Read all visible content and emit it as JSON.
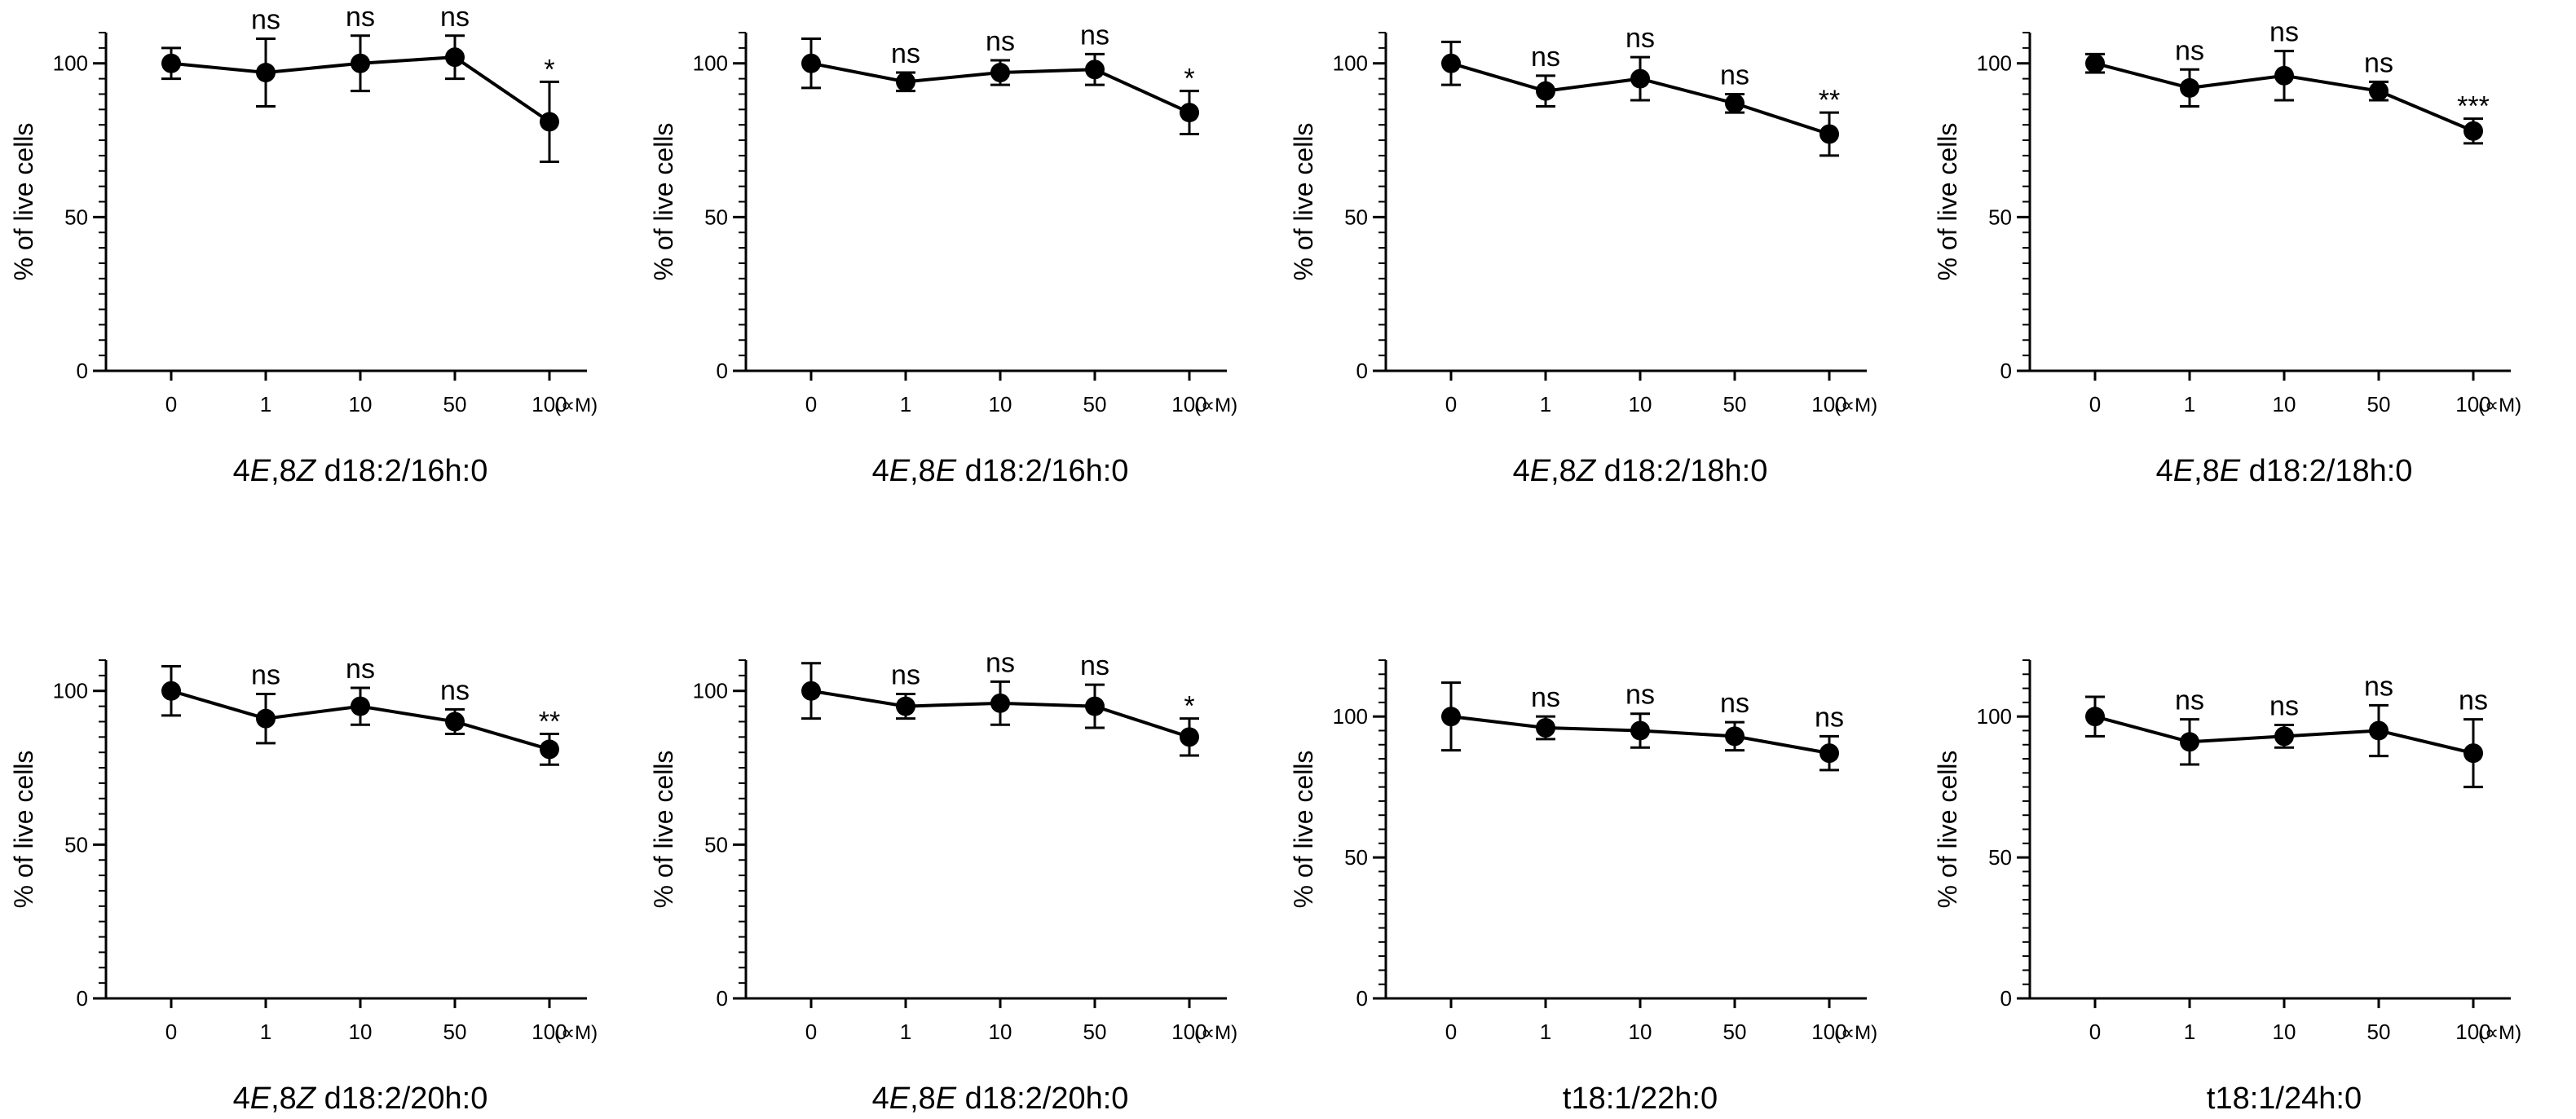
{
  "figure": {
    "unit_label": "(∝M)",
    "ylabel": "% of live cells"
  },
  "chart_data": [
    {
      "type": "line",
      "title_parts": [
        {
          "text": "4"
        },
        {
          "text": "E",
          "italic": true
        },
        {
          "text": ",8"
        },
        {
          "text": "Z",
          "italic": true
        },
        {
          "text": " d18:2/16h:0"
        }
      ],
      "xlabel": "4E,8Z d18:2/16h:0",
      "ylabel": "% of live cells",
      "unit": "(∝M)",
      "categories": [
        "0",
        "1",
        "10",
        "50",
        "100"
      ],
      "values": [
        100,
        97,
        100,
        102,
        81
      ],
      "errors": [
        5,
        11,
        9,
        7,
        13
      ],
      "annotations": [
        "",
        "ns",
        "ns",
        "ns",
        "*"
      ],
      "ylim": [
        0,
        110
      ],
      "yticks": [
        0,
        50,
        100
      ]
    },
    {
      "type": "line",
      "title_parts": [
        {
          "text": "4"
        },
        {
          "text": "E",
          "italic": true
        },
        {
          "text": ",8"
        },
        {
          "text": "E",
          "italic": true
        },
        {
          "text": " d18:2/16h:0"
        }
      ],
      "xlabel": "4E,8E d18:2/16h:0",
      "ylabel": "% of live cells",
      "unit": "(∝M)",
      "categories": [
        "0",
        "1",
        "10",
        "50",
        "100"
      ],
      "values": [
        100,
        94,
        97,
        98,
        84
      ],
      "errors": [
        8,
        3,
        4,
        5,
        7
      ],
      "annotations": [
        "",
        "ns",
        "ns",
        "ns",
        "*"
      ],
      "ylim": [
        0,
        110
      ],
      "yticks": [
        0,
        50,
        100
      ]
    },
    {
      "type": "line",
      "title_parts": [
        {
          "text": "4"
        },
        {
          "text": "E",
          "italic": true
        },
        {
          "text": ",8"
        },
        {
          "text": "Z",
          "italic": true
        },
        {
          "text": " d18:2/18h:0"
        }
      ],
      "xlabel": "4E,8Z d18:2/18h:0",
      "ylabel": "% of live cells",
      "unit": "(∝M)",
      "categories": [
        "0",
        "1",
        "10",
        "50",
        "100"
      ],
      "values": [
        100,
        91,
        95,
        87,
        77
      ],
      "errors": [
        7,
        5,
        7,
        3,
        7
      ],
      "annotations": [
        "",
        "ns",
        "ns",
        "ns",
        "**"
      ],
      "ylim": [
        0,
        110
      ],
      "yticks": [
        0,
        50,
        100
      ]
    },
    {
      "type": "line",
      "title_parts": [
        {
          "text": "4"
        },
        {
          "text": "E",
          "italic": true
        },
        {
          "text": ",8"
        },
        {
          "text": "E",
          "italic": true
        },
        {
          "text": " d18:2/18h:0"
        }
      ],
      "xlabel": "4E,8E d18:2/18h:0",
      "ylabel": "% of live cells",
      "unit": "(∝M)",
      "categories": [
        "0",
        "1",
        "10",
        "50",
        "100"
      ],
      "values": [
        100,
        92,
        96,
        91,
        78
      ],
      "errors": [
        3,
        6,
        8,
        3,
        4
      ],
      "annotations": [
        "",
        "ns",
        "ns",
        "ns",
        "***"
      ],
      "ylim": [
        0,
        110
      ],
      "yticks": [
        0,
        50,
        100
      ]
    },
    {
      "type": "line",
      "title_parts": [
        {
          "text": "4"
        },
        {
          "text": "E",
          "italic": true
        },
        {
          "text": ",8"
        },
        {
          "text": "Z",
          "italic": true
        },
        {
          "text": " d18:2/20h:0"
        }
      ],
      "xlabel": "4E,8Z d18:2/20h:0",
      "ylabel": "% of live cells",
      "unit": "(∝M)",
      "categories": [
        "0",
        "1",
        "10",
        "50",
        "100"
      ],
      "values": [
        100,
        91,
        95,
        90,
        81
      ],
      "errors": [
        8,
        8,
        6,
        4,
        5
      ],
      "annotations": [
        "",
        "ns",
        "ns",
        "ns",
        "**"
      ],
      "ylim": [
        0,
        110
      ],
      "yticks": [
        0,
        50,
        100
      ]
    },
    {
      "type": "line",
      "title_parts": [
        {
          "text": "4"
        },
        {
          "text": "E",
          "italic": true
        },
        {
          "text": ",8"
        },
        {
          "text": "E",
          "italic": true
        },
        {
          "text": " d18:2/20h:0"
        }
      ],
      "xlabel": "4E,8E d18:2/20h:0",
      "ylabel": "% of live cells",
      "unit": "(∝M)",
      "categories": [
        "0",
        "1",
        "10",
        "50",
        "100"
      ],
      "values": [
        100,
        95,
        96,
        95,
        85
      ],
      "errors": [
        9,
        4,
        7,
        7,
        6
      ],
      "annotations": [
        "",
        "ns",
        "ns",
        "ns",
        "*"
      ],
      "ylim": [
        0,
        110
      ],
      "yticks": [
        0,
        50,
        100
      ]
    },
    {
      "type": "line",
      "title_parts": [
        {
          "text": "t18:1/22h:0"
        }
      ],
      "xlabel": "t18:1/22h:0",
      "ylabel": "% of live cells",
      "unit": "(∝M)",
      "categories": [
        "0",
        "1",
        "10",
        "50",
        "100"
      ],
      "values": [
        100,
        96,
        95,
        93,
        87
      ],
      "errors": [
        12,
        4,
        6,
        5,
        6
      ],
      "annotations": [
        "",
        "ns",
        "ns",
        "ns",
        "ns"
      ],
      "ylim": [
        0,
        120
      ],
      "yticks": [
        0,
        50,
        100
      ]
    },
    {
      "type": "line",
      "title_parts": [
        {
          "text": "t18:1/24h:0"
        }
      ],
      "xlabel": "t18:1/24h:0",
      "ylabel": "% of live cells",
      "unit": "(∝M)",
      "categories": [
        "0",
        "1",
        "10",
        "50",
        "100"
      ],
      "values": [
        100,
        91,
        93,
        95,
        87
      ],
      "errors": [
        7,
        8,
        4,
        9,
        12
      ],
      "annotations": [
        "",
        "ns",
        "ns",
        "ns",
        "ns"
      ],
      "ylim": [
        0,
        120
      ],
      "yticks": [
        0,
        50,
        100
      ]
    }
  ]
}
